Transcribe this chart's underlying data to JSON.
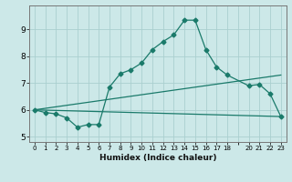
{
  "xlabel": "Humidex (Indice chaleur)",
  "ylabel": "",
  "bg_color": "#cce8e8",
  "grid_color": "#aacfcf",
  "line_color": "#1a7a6a",
  "xlim": [
    -0.5,
    23.5
  ],
  "ylim": [
    4.8,
    9.9
  ],
  "xticks": [
    0,
    1,
    2,
    3,
    4,
    5,
    6,
    7,
    8,
    9,
    10,
    11,
    12,
    13,
    14,
    15,
    16,
    17,
    18,
    20,
    21,
    22,
    23
  ],
  "yticks": [
    5,
    6,
    7,
    8,
    9
  ],
  "line1_x": [
    0,
    1,
    2,
    3,
    4,
    5,
    6,
    7,
    8,
    9,
    10,
    11,
    12,
    13,
    14,
    15,
    16,
    17,
    18,
    20,
    21,
    22,
    23
  ],
  "line1_y": [
    6.0,
    5.9,
    5.85,
    5.7,
    5.35,
    5.45,
    5.45,
    6.85,
    7.35,
    7.5,
    7.75,
    8.25,
    8.55,
    8.8,
    9.35,
    9.35,
    8.25,
    7.6,
    7.3,
    6.9,
    6.95,
    6.6,
    5.75
  ],
  "line2_x": [
    0,
    23
  ],
  "line2_y": [
    6.0,
    5.75
  ],
  "line3_x": [
    0,
    23
  ],
  "line3_y": [
    6.0,
    7.3
  ]
}
